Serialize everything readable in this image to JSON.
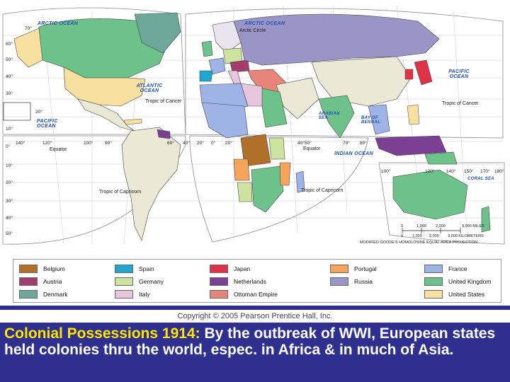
{
  "map": {
    "projection": "MODIFIED GOODE'S HOMOLOSINE EQUAL-AREA PROJECTION",
    "ocean_labels": {
      "arctic_ocean_left": "ARCTIC OCEAN",
      "arctic_ocean_right": "ARCTIC OCEAN",
      "atlantic_ocean": "ATLANTIC OCEAN",
      "pacific_ocean_left": "PACIFIC OCEAN",
      "pacific_ocean_right": "PACIFIC OCEAN",
      "indian_ocean": "INDIAN OCEAN",
      "arabian_sea": "ARABIAN SEA",
      "bay_of_bengal": "BAY OF BENGAL",
      "coral_sea": "CORAL SEA"
    },
    "line_labels": {
      "arctic_circle": "Arctic Circle",
      "tropic_of_cancer_left": "Tropic of Cancer",
      "tropic_of_cancer_right": "Tropic of Cancer",
      "tropic_of_capricorn_left": "Tropic of Capricorn",
      "tropic_of_capricorn_right": "Tropic of Capricorn",
      "equator_left": "Equator",
      "equator_right": "Equator"
    },
    "lat_labels": [
      "70°",
      "60°",
      "50°",
      "40°",
      "30°",
      "20°",
      "10°",
      "0°",
      "10°",
      "20°",
      "30°",
      "40°",
      "50°"
    ],
    "lon_labels": [
      "140°",
      "120°",
      "100°",
      "90°",
      "60°",
      "40°",
      "20°",
      "0°",
      "20°",
      "40°",
      "50°",
      "70°",
      "80°",
      "100°",
      "120°",
      "140°",
      "150°",
      "170°",
      "180°"
    ],
    "scale": {
      "miles": [
        "0",
        "1,000",
        "2,000",
        "3,000 MILES"
      ],
      "km": [
        "0",
        "1,000",
        "2,000",
        "3,000 KILOMETERS"
      ]
    }
  },
  "legend": {
    "items": [
      {
        "label": "Belgium",
        "color": "#b0702a"
      },
      {
        "label": "Spain",
        "color": "#1fa7cf"
      },
      {
        "label": "Japan",
        "color": "#e0334a"
      },
      {
        "label": "Portugal",
        "color": "#f5a45a"
      },
      {
        "label": "France",
        "color": "#9eb4e6"
      },
      {
        "label": "Austria",
        "color": "#a33d6e"
      },
      {
        "label": "Germany",
        "color": "#cde3a0"
      },
      {
        "label": "Netherlands",
        "color": "#7b3f93"
      },
      {
        "label": "Russia",
        "color": "#9a95c7"
      },
      {
        "label": "United Kingdom",
        "color": "#6cc28a"
      },
      {
        "label": "Denmark",
        "color": "#6ea89a"
      },
      {
        "label": "Italy",
        "color": "#e6c5dd"
      },
      {
        "label": "Ottoman Empire",
        "color": "#e8857a"
      },
      {
        "label": "United States",
        "color": "#f7e0a0"
      }
    ]
  },
  "copyright": "Copyright © 2005 Pearson Prentice Hall, Inc.",
  "caption": {
    "lead": "Colonial Possessions 1914:",
    "body": " By the outbreak of WWI, European states held colonies thru the world, espec. in Africa & in much of Asia."
  }
}
